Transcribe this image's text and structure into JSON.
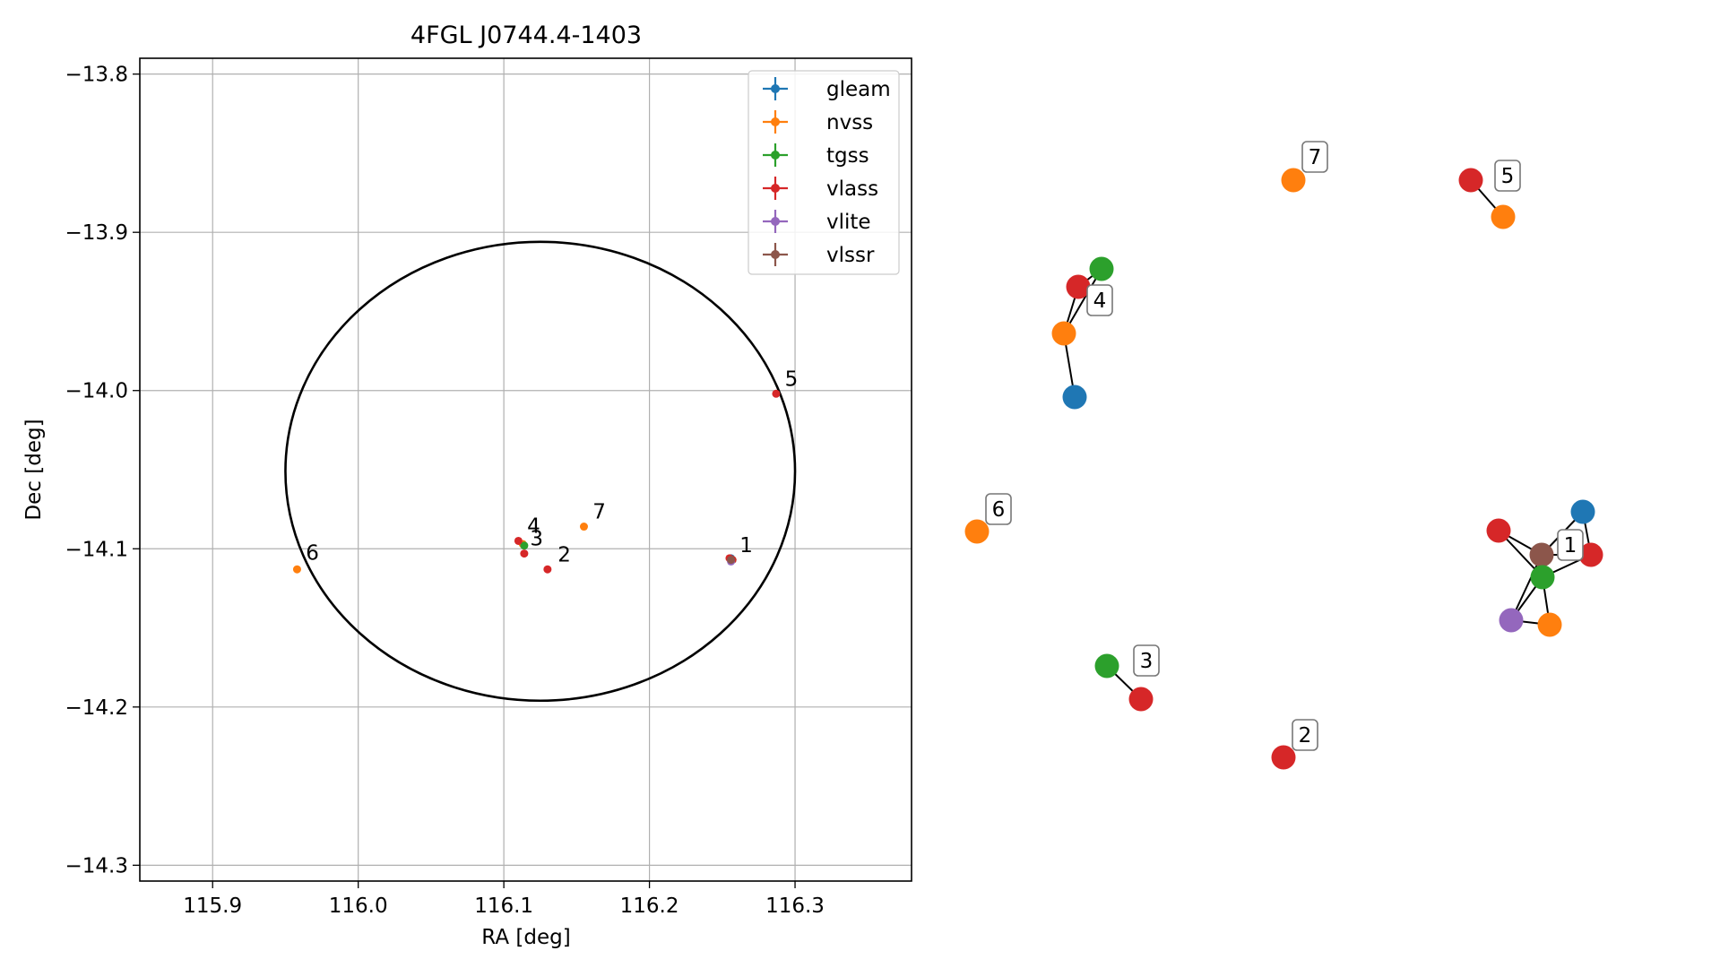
{
  "chart_data": [
    {
      "type": "scatter",
      "title": "4FGL J0744.4-1403",
      "xlabel": "RA [deg]",
      "ylabel": "Dec [deg]",
      "xlim": [
        115.85,
        116.38
      ],
      "ylim": [
        -14.31,
        -13.79
      ],
      "x_ticks": [
        115.9,
        116.0,
        116.1,
        116.2,
        116.3
      ],
      "x_tick_labels": [
        "115.9",
        "116.0",
        "116.1",
        "116.2",
        "116.3"
      ],
      "y_ticks": [
        -13.8,
        -13.9,
        -14.0,
        -14.1,
        -14.2,
        -14.3
      ],
      "y_tick_labels": [
        "−13.8",
        "−13.9",
        "−14.0",
        "−14.1",
        "−14.2",
        "−14.3"
      ],
      "grid": true,
      "legend_placement": "top-right",
      "series": [
        {
          "name": "gleam",
          "color": "#1f77b4",
          "points": [
            {
              "x": 116.256,
              "y": -14.106
            }
          ]
        },
        {
          "name": "nvss",
          "color": "#ff7f0e",
          "points": [
            {
              "x": 116.256,
              "y": -14.107
            },
            {
              "x": 116.113,
              "y": -14.097
            },
            {
              "x": 116.155,
              "y": -14.086
            },
            {
              "x": 115.958,
              "y": -14.113
            }
          ]
        },
        {
          "name": "tgss",
          "color": "#2ca02c",
          "points": [
            {
              "x": 116.257,
              "y": -14.107
            },
            {
              "x": 116.114,
              "y": -14.098
            }
          ]
        },
        {
          "name": "vlass",
          "color": "#d62728",
          "points": [
            {
              "x": 116.255,
              "y": -14.106
            },
            {
              "x": 116.257,
              "y": -14.107
            },
            {
              "x": 116.13,
              "y": -14.113
            },
            {
              "x": 116.114,
              "y": -14.103
            },
            {
              "x": 116.11,
              "y": -14.095
            },
            {
              "x": 116.287,
              "y": -14.002
            }
          ]
        },
        {
          "name": "vlite",
          "color": "#9467bd",
          "points": [
            {
              "x": 116.256,
              "y": -14.108
            }
          ]
        },
        {
          "name": "vlssr",
          "color": "#8c564b",
          "points": [
            {
              "x": 116.256,
              "y": -14.107
            }
          ]
        }
      ],
      "ellipse": {
        "center": [
          116.125,
          -14.051
        ],
        "ra_half_width": 0.175,
        "dec_half_height": 0.145
      },
      "annotations": [
        {
          "text": "1",
          "x": 116.262,
          "y": -14.102
        },
        {
          "text": "2",
          "x": 116.137,
          "y": -14.108
        },
        {
          "text": "3",
          "x": 116.118,
          "y": -14.098
        },
        {
          "text": "4",
          "x": 116.116,
          "y": -14.09
        },
        {
          "text": "5",
          "x": 116.293,
          "y": -13.997
        },
        {
          "text": "6",
          "x": 115.964,
          "y": -14.107
        },
        {
          "text": "7",
          "x": 116.161,
          "y": -14.081
        }
      ]
    },
    {
      "type": "network",
      "description_free": true,
      "node_colors": {
        "gleam": "#1f77b4",
        "nvss": "#ff7f0e",
        "tgss": "#2ca02c",
        "vlass": "#d62728",
        "vlite": "#9467bd",
        "vlssr": "#8c564b"
      },
      "groups": [
        {
          "label": "1",
          "nodes": [
            "vlssr",
            "gleam",
            "vlass",
            "vlass",
            "tgss",
            "vlite",
            "nvss"
          ]
        },
        {
          "label": "2",
          "nodes": [
            "vlass"
          ]
        },
        {
          "label": "3",
          "nodes": [
            "tgss",
            "vlass"
          ]
        },
        {
          "label": "4",
          "nodes": [
            "tgss",
            "vlass",
            "nvss",
            "gleam"
          ]
        },
        {
          "label": "5",
          "nodes": [
            "vlass",
            "nvss"
          ]
        },
        {
          "label": "6",
          "nodes": [
            "nvss"
          ]
        },
        {
          "label": "7",
          "nodes": [
            "nvss"
          ]
        }
      ]
    }
  ]
}
